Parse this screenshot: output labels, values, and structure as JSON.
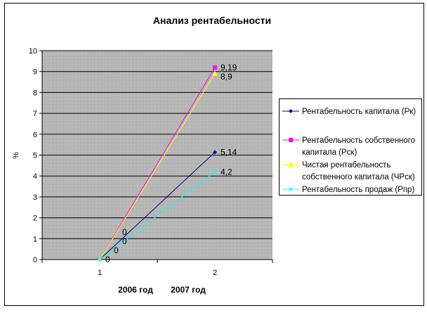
{
  "chart_data": {
    "type": "line",
    "title": "Анализ рентабельности",
    "ylabel": "%",
    "xlabel": "",
    "categories": [
      "1",
      "2"
    ],
    "category_captions": [
      "2006 год",
      "2007 год"
    ],
    "ylim": [
      0,
      10
    ],
    "yticks": [
      0,
      1,
      2,
      3,
      4,
      5,
      6,
      7,
      8,
      9,
      10
    ],
    "grid": true,
    "legend_position": "right",
    "series": [
      {
        "name": "Рентабельность капитала (Рк)",
        "values": [
          0,
          5.14
        ],
        "labels": [
          "0",
          "5,14"
        ],
        "color": "#000080",
        "marker": "diamond"
      },
      {
        "name": "Рентабельность собственного капитала (Рск)",
        "legend_lines": [
          "Рентабельность собственного",
          "капитала (Рск)"
        ],
        "values": [
          0,
          9.19
        ],
        "labels": [
          "0",
          "9,19"
        ],
        "color": "#ff00ff",
        "marker": "square"
      },
      {
        "name": "Чистая рентабельность собственного капитала (ЧРск)",
        "legend_lines": [
          "Чистая рентабельность",
          "собственного капитала (ЧРск)"
        ],
        "values": [
          0,
          8.9
        ],
        "labels": [
          "0",
          "8,9"
        ],
        "color": "#ffff00",
        "marker": "triangle"
      },
      {
        "name": "Рентабельность продаж (Рпр)",
        "values": [
          0,
          4.2
        ],
        "labels": [
          "0",
          "4,2"
        ],
        "color": "#00ffff",
        "marker": "x"
      }
    ]
  }
}
